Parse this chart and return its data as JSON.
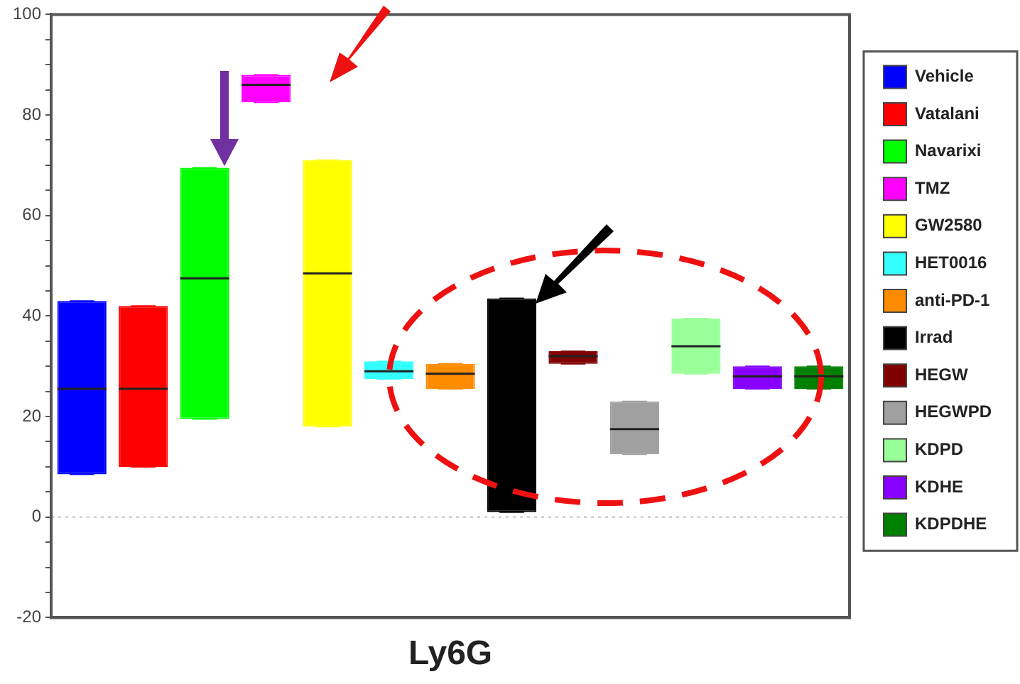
{
  "chart_data": {
    "type": "box",
    "xlabel": "Ly6G",
    "categories": [
      null,
      null,
      null,
      null,
      null,
      null,
      null,
      null,
      null,
      null,
      null,
      null,
      null
    ],
    "ylim": [
      -20,
      100
    ],
    "yticks": [
      -20,
      {
        "value": -15,
        "label": null
      },
      {
        "value": -10,
        "label": null
      },
      {
        "value": -5,
        "label": null
      },
      0,
      {
        "value": 5,
        "label": null
      },
      {
        "value": 10,
        "label": null
      },
      {
        "value": 15,
        "label": null
      },
      20,
      {
        "value": 25,
        "label": null
      },
      {
        "value": 30,
        "label": null
      },
      {
        "value": 35,
        "label": null
      },
      40,
      {
        "value": 45,
        "label": null
      },
      {
        "value": 50,
        "label": null
      },
      {
        "value": 55,
        "label": null
      },
      60,
      {
        "value": 65,
        "label": null
      },
      {
        "value": 70,
        "label": null
      },
      {
        "value": 75,
        "label": null
      },
      80,
      {
        "value": 85,
        "label": null
      },
      {
        "value": 90,
        "label": null
      },
      {
        "value": 95,
        "label": null
      },
      100
    ],
    "grid": false,
    "legend": "right",
    "ref_lines": [
      {
        "axis": "y",
        "value": 0,
        "color": "#c0c0c0",
        "line_style": "dotted"
      }
    ],
    "series": [
      {
        "name": "Vehicle",
        "color": "#0000ff",
        "boxes": [
          {
            "low": 8.5,
            "q1": 8.5,
            "median": 25.5,
            "q3": 43,
            "high": 43
          },
          null,
          null,
          null,
          null,
          null,
          null,
          null,
          null,
          null,
          null,
          null,
          null
        ]
      },
      {
        "name": "Vatalani",
        "color": "#ff0000",
        "boxes": [
          null,
          {
            "low": 10,
            "q1": 10,
            "median": 25.5,
            "q3": 42,
            "high": 42
          },
          null,
          null,
          null,
          null,
          null,
          null,
          null,
          null,
          null,
          null,
          null
        ]
      },
      {
        "name": "Navarixi",
        "color": "#00ff00",
        "boxes": [
          null,
          null,
          {
            "low": 19.5,
            "q1": 19.5,
            "median": 47.5,
            "q3": 69.5,
            "high": 69.5
          },
          null,
          null,
          null,
          null,
          null,
          null,
          null,
          null,
          null,
          null
        ]
      },
      {
        "name": "TMZ",
        "color": "#ff00ff",
        "boxes": [
          null,
          null,
          null,
          {
            "low": 82.5,
            "q1": 82.5,
            "median": 86,
            "q3": 88,
            "high": 88
          },
          null,
          null,
          null,
          null,
          null,
          null,
          null,
          null,
          null
        ]
      },
      {
        "name": "GW2580",
        "color": "#ffff00",
        "boxes": [
          null,
          null,
          null,
          null,
          {
            "low": 18,
            "q1": 18,
            "median": 48.5,
            "q3": 71,
            "high": 71
          },
          null,
          null,
          null,
          null,
          null,
          null,
          null,
          null
        ]
      },
      {
        "name": "HET0016",
        "color": "#33ffff",
        "boxes": [
          null,
          null,
          null,
          null,
          null,
          {
            "low": 27.5,
            "q1": 27.5,
            "median": 29,
            "q3": 31,
            "high": 31
          },
          null,
          null,
          null,
          null,
          null,
          null,
          null
        ]
      },
      {
        "name": "anti-PD-1",
        "color": "#ff8c00",
        "boxes": [
          null,
          null,
          null,
          null,
          null,
          null,
          {
            "low": 25.5,
            "q1": 25.5,
            "median": 28.5,
            "q3": 30.5,
            "high": 30.5
          },
          null,
          null,
          null,
          null,
          null,
          null
        ]
      },
      {
        "name": "Irrad",
        "color": "#000000",
        "boxes": [
          null,
          null,
          null,
          null,
          null,
          null,
          null,
          {
            "low": 1,
            "q1": 1,
            "median": null,
            "q3": 43.5,
            "high": 43.5
          },
          null,
          null,
          null,
          null,
          null
        ]
      },
      {
        "name": "HEGW",
        "color": "#800000",
        "boxes": [
          null,
          null,
          null,
          null,
          null,
          null,
          null,
          null,
          {
            "low": 30.5,
            "q1": 30.5,
            "median": 32,
            "q3": 33,
            "high": 33
          },
          null,
          null,
          null,
          null
        ]
      },
      {
        "name": "HEGWPD",
        "color": "#a0a0a0",
        "boxes": [
          null,
          null,
          null,
          null,
          null,
          null,
          null,
          null,
          null,
          {
            "low": 12.5,
            "q1": 12.5,
            "median": 17.5,
            "q3": 23,
            "high": 23
          },
          null,
          null,
          null
        ]
      },
      {
        "name": "KDPD",
        "color": "#99ff99",
        "boxes": [
          null,
          null,
          null,
          null,
          null,
          null,
          null,
          null,
          null,
          null,
          {
            "low": 28.5,
            "q1": 28.5,
            "median": 34,
            "q3": 39.5,
            "high": 39.5
          },
          null,
          null
        ]
      },
      {
        "name": "KDHE",
        "color": "#8800ff",
        "boxes": [
          null,
          null,
          null,
          null,
          null,
          null,
          null,
          null,
          null,
          null,
          null,
          {
            "low": 25.5,
            "q1": 25.5,
            "median": 28,
            "q3": 30,
            "high": 30
          },
          null
        ]
      },
      {
        "name": "KDPDHE",
        "color": "#008000",
        "boxes": [
          null,
          null,
          null,
          null,
          null,
          null,
          null,
          null,
          null,
          null,
          null,
          null,
          {
            "low": 25.5,
            "q1": 25.5,
            "median": 28,
            "q3": 30,
            "high": 30
          }
        ]
      }
    ]
  }
}
